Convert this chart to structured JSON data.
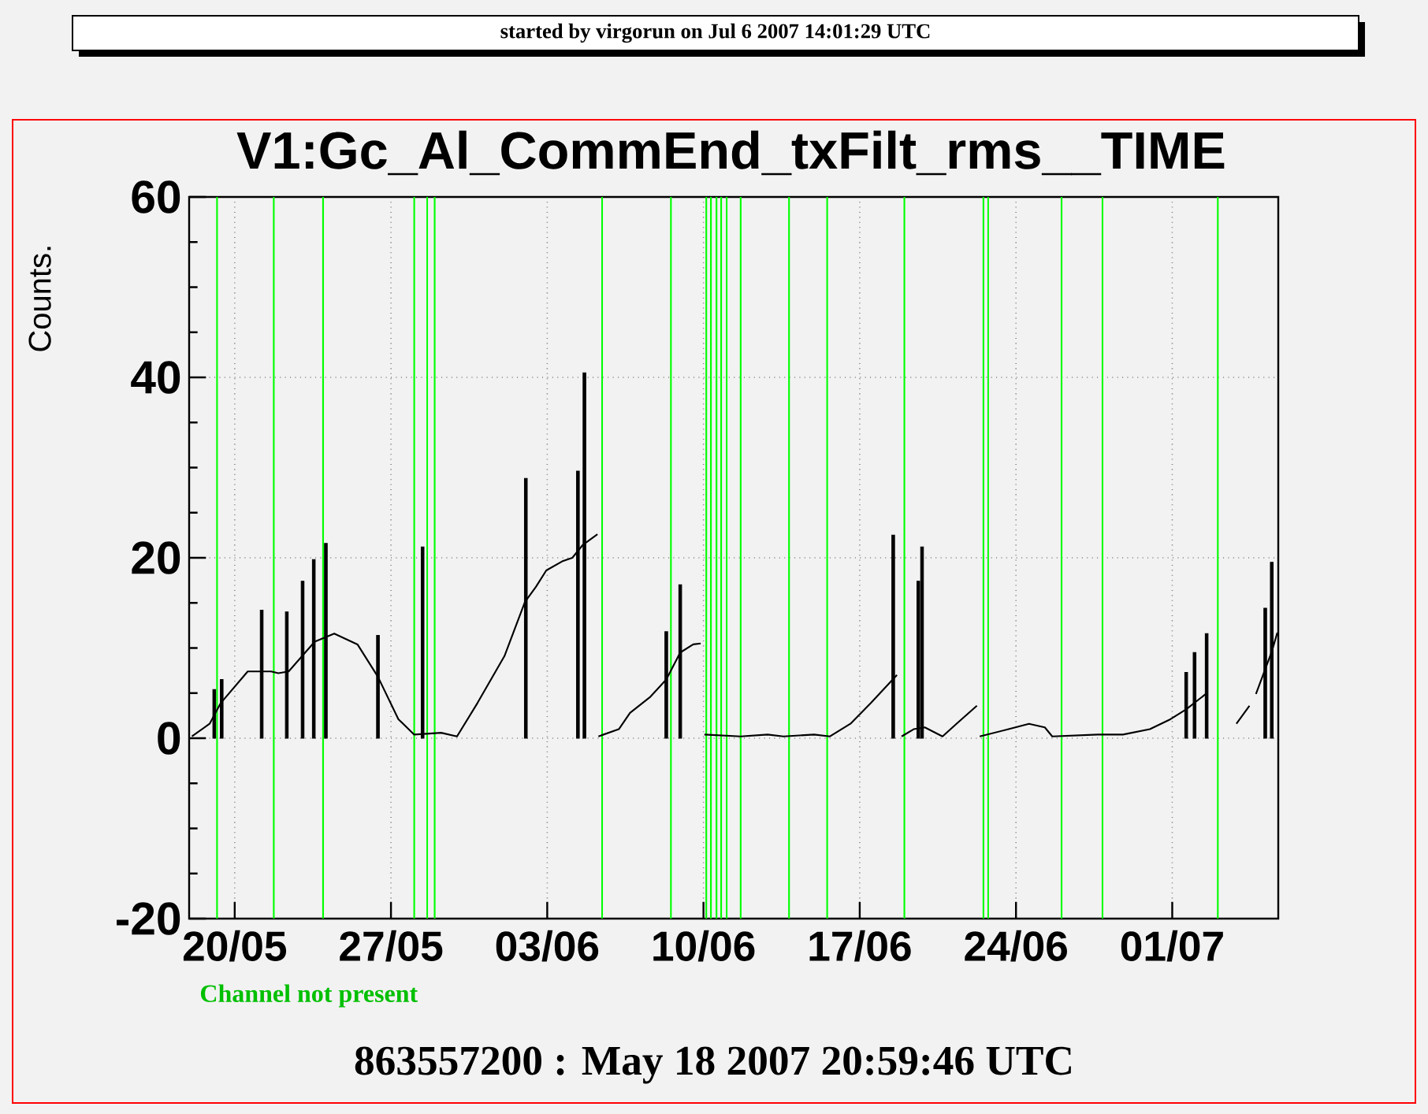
{
  "chart_data": {
    "type": "line",
    "title": "V1:Gc_Al_CommEnd_txFilt_rms__TIME",
    "ylabel": "Counts.",
    "annotations": [
      "started by virgorun on Jul  6 2007 14:01:29 UTC",
      "Channel not present",
      "863557200 : May 18 2007 20:59:46 UTC"
    ],
    "xlim": [
      "2007-05-17T23:00",
      "2007-07-05T18:00"
    ],
    "xticks": [
      {
        "value": "2007-05-20",
        "label": "20/05"
      },
      {
        "value": "2007-05-27",
        "label": "27/05"
      },
      {
        "value": "2007-06-03",
        "label": "03/06"
      },
      {
        "value": "2007-06-10",
        "label": "10/06"
      },
      {
        "value": "2007-06-17",
        "label": "17/06"
      },
      {
        "value": "2007-06-24",
        "label": "24/06"
      },
      {
        "value": "2007-07-01",
        "label": "01/07"
      }
    ],
    "ylim": [
      -20,
      60
    ],
    "yticks": [
      -20,
      0,
      20,
      40,
      60
    ],
    "grid": true,
    "series": [
      {
        "color": "#000000",
        "x": [
          "2007-05-18T02:00",
          "2007-05-18T21:00",
          "2007-05-19T09:00",
          "2007-05-20T14:00",
          "2007-05-21T15:00",
          "2007-05-21T23:00",
          "2007-05-22T10:00",
          "2007-05-23T14:00",
          "2007-05-24T11:00",
          "2007-05-25T12:00",
          "2007-05-26T10:00",
          "2007-05-27T08:00",
          "2007-05-28T01:00",
          "2007-05-29T06:00",
          "2007-05-29T23:00",
          "2007-05-30T21:00",
          "2007-06-01T02:00",
          "2007-06-02T00:00",
          "2007-06-02T12:00",
          "2007-06-02T23:00",
          "2007-06-03T16:00",
          "2007-06-04T03:00",
          "2007-06-04T14:00",
          "2007-06-05T06:00",
          "2007-06-05T06:30",
          "2007-06-05T07:00",
          "2007-06-06T05:00",
          "2007-06-06T17:00",
          "2007-06-07T15:00",
          "2007-06-08T08:00",
          "2007-06-08T23:00",
          "2007-06-09T13:00",
          "2007-06-09T21:00",
          "2007-06-09T23:00",
          "2007-06-10T01:00",
          "2007-06-11T16:00",
          "2007-06-12T21:00",
          "2007-06-13T14:00",
          "2007-06-14T23:00",
          "2007-06-15T16:00",
          "2007-06-16T14:00",
          "2007-06-17T12:00",
          "2007-06-18T16:00",
          "2007-06-18T18:00",
          "2007-06-18T21:00",
          "2007-06-19T10:00",
          "2007-06-19T22:00",
          "2007-06-20T17:00",
          "2007-06-21T08:00",
          "2007-06-22T06:00",
          "2007-06-22T07:30",
          "2007-06-22T09:00",
          "2007-06-23T16:00",
          "2007-06-24T14:00",
          "2007-06-25T07:00",
          "2007-06-25T15:00",
          "2007-06-27T16:00",
          "2007-06-28T19:00",
          "2007-06-30T00:00",
          "2007-06-30T22:00",
          "2007-07-01T15:00",
          "2007-07-02T12:00",
          "2007-07-03T04:00",
          "2007-07-03T21:00",
          "2007-07-04T11:00",
          "2007-07-04T14:00",
          "2007-07-04T18:00",
          "2007-07-05T11:00",
          "2007-07-05T17:00"
        ],
        "values": [
          0.2,
          1.6,
          3.9,
          7.4,
          7.4,
          7.2,
          7.4,
          10.7,
          11.6,
          10.4,
          6.8,
          2.1,
          0.4,
          0.6,
          0.2,
          3.9,
          9.1,
          15.1,
          16.8,
          18.6,
          19.6,
          20,
          21.4,
          22.6,
          null,
          0.2,
          1.0,
          2.8,
          4.6,
          6.5,
          9.5,
          10.4,
          10.5,
          null,
          0.4,
          0.2,
          0.4,
          0.2,
          0.4,
          0.2,
          1.6,
          3.9,
          7.0,
          null,
          0.2,
          1.0,
          1.2,
          0.2,
          1.6,
          3.6,
          null,
          0.2,
          1.0,
          1.6,
          1.2,
          0.2,
          0.4,
          0.4,
          1.0,
          2.1,
          3.2,
          4.9,
          null,
          1.6,
          3.6,
          null,
          4.9,
          9.6,
          11.7
        ]
      },
      {
        "type": "bar",
        "color": "#000000",
        "x": [
          "2007-05-19T02:00",
          "2007-05-19T10:00",
          "2007-05-21T05:00",
          "2007-05-22T08:00",
          "2007-05-23T01:00",
          "2007-05-23T13:00",
          "2007-05-24T02:00",
          "2007-05-26T10:00",
          "2007-05-28T10:00",
          "2007-06-02T01:00",
          "2007-06-04T09:00",
          "2007-06-04T16:00",
          "2007-06-08T08:00",
          "2007-06-08T23:00",
          "2007-06-18T12:00",
          "2007-06-19T15:00",
          "2007-06-19T19:00",
          "2007-07-01T15:00",
          "2007-07-02T00:00",
          "2007-07-02T13:00",
          "2007-07-05T04:00",
          "2007-07-05T11:00"
        ],
        "values": [
          5.4,
          6.5,
          14.2,
          14.0,
          17.4,
          19.8,
          21.6,
          11.4,
          21.2,
          28.8,
          29.6,
          40.5,
          11.8,
          17.0,
          22.5,
          17.4,
          21.2,
          7.3,
          9.5,
          11.6,
          14.4,
          19.5
        ]
      }
    ],
    "ref_lines": [
      {
        "axis": "x",
        "value": "2007-05-19T05:00",
        "color": "#00ff00"
      },
      {
        "axis": "x",
        "value": "2007-05-21T18:00",
        "color": "#00ff00"
      },
      {
        "axis": "x",
        "value": "2007-05-23T23:00",
        "color": "#00ff00"
      },
      {
        "axis": "x",
        "value": "2007-05-28T01:00",
        "color": "#00ff00"
      },
      {
        "axis": "x",
        "value": "2007-05-28T15:00",
        "color": "#00ff00"
      },
      {
        "axis": "x",
        "value": "2007-05-28T23:00",
        "color": "#00ff00"
      },
      {
        "axis": "x",
        "value": "2007-06-05T11:00",
        "color": "#00ff00"
      },
      {
        "axis": "x",
        "value": "2007-06-08T13:00",
        "color": "#00ff00"
      },
      {
        "axis": "x",
        "value": "2007-06-10T03:00",
        "color": "#00ff00"
      },
      {
        "axis": "x",
        "value": "2007-06-10T08:00",
        "color": "#00ff00"
      },
      {
        "axis": "x",
        "value": "2007-06-10T14:00",
        "color": "#00ff00"
      },
      {
        "axis": "x",
        "value": "2007-06-10T19:00",
        "color": "#00ff00"
      },
      {
        "axis": "x",
        "value": "2007-06-11T01:00",
        "color": "#00ff00"
      },
      {
        "axis": "x",
        "value": "2007-06-11T16:00",
        "color": "#00ff00"
      },
      {
        "axis": "x",
        "value": "2007-06-13T20:00",
        "color": "#00ff00"
      },
      {
        "axis": "x",
        "value": "2007-06-15T13:00",
        "color": "#00ff00"
      },
      {
        "axis": "x",
        "value": "2007-06-19T00:00",
        "color": "#00ff00"
      },
      {
        "axis": "x",
        "value": "2007-06-22T13:00",
        "color": "#00ff00"
      },
      {
        "axis": "x",
        "value": "2007-06-22T18:00",
        "color": "#00ff00"
      },
      {
        "axis": "x",
        "value": "2007-06-26T01:00",
        "color": "#00ff00"
      },
      {
        "axis": "x",
        "value": "2007-06-27T21:00",
        "color": "#00ff00"
      },
      {
        "axis": "x",
        "value": "2007-07-03T01:00",
        "color": "#00ff00"
      }
    ]
  }
}
